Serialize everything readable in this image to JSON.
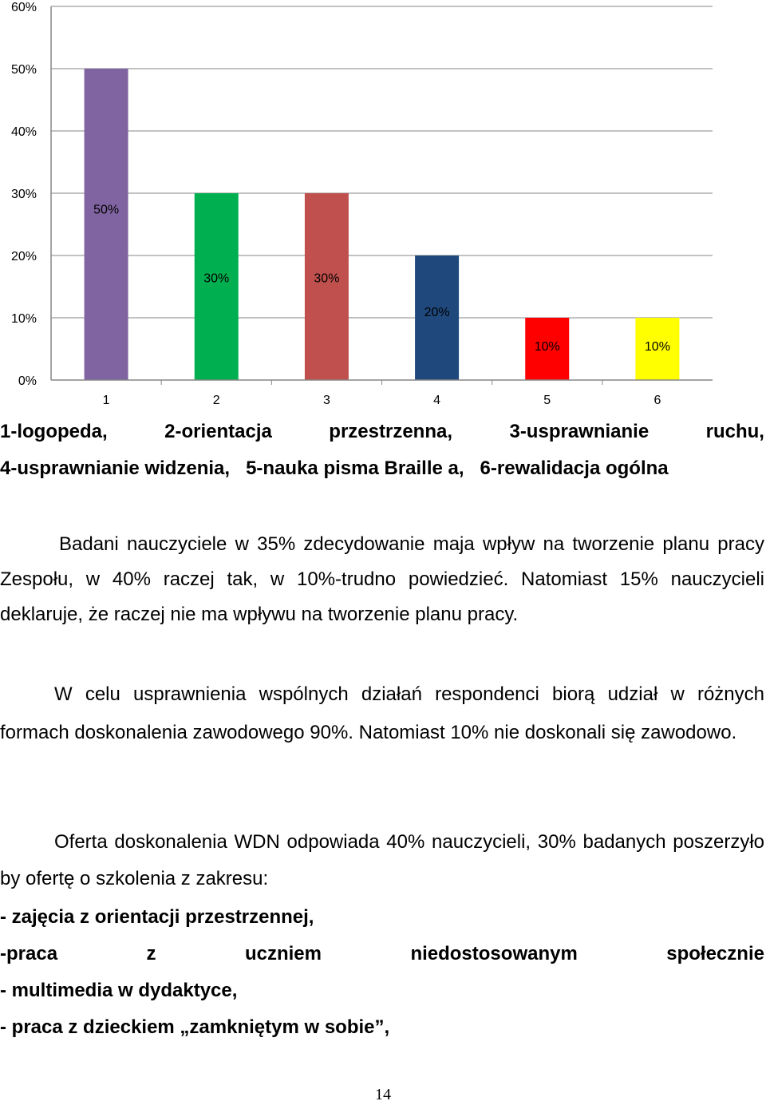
{
  "chart_data": {
    "type": "bar",
    "categories": [
      "1",
      "2",
      "3",
      "4",
      "5",
      "6"
    ],
    "values": [
      50,
      30,
      30,
      20,
      10,
      10
    ],
    "data_labels": [
      "50%",
      "30%",
      "30%",
      "20%",
      "10%",
      "10%"
    ],
    "colors": [
      "#8064a2",
      "#00b050",
      "#c0504d",
      "#1f497d",
      "#ff0000",
      "#ffff00"
    ],
    "yticks": [
      "0%",
      "10%",
      "20%",
      "30%",
      "40%",
      "50%",
      "60%"
    ],
    "ylim": [
      0,
      60
    ],
    "grid": true,
    "title": "",
    "xlabel": "",
    "ylabel": ""
  },
  "legend": {
    "line1": [
      "1-logopeda,",
      "2-orientacja",
      "przestrzenna,",
      "3-usprawnianie",
      "ruchu,"
    ],
    "line2": [
      "4-usprawnianie widzenia,",
      "5-nauka pisma Braille a,",
      "6-rewalidacja ogólna"
    ]
  },
  "paragraphs": {
    "p1": "Badani nauczyciele w 35% zdecydowanie maja wpływ na tworzenie planu pracy Zespołu, w 40% raczej tak, w 10%-trudno powiedzieć. Natomiast 15% nauczycieli deklaruje, że raczej nie ma wpływu na tworzenie planu pracy.",
    "p2": "W celu usprawnienia wspólnych działań respondenci biorą udział w różnych formach doskonalenia zawodowego  90%. Natomiast 10% nie doskonali się zawodowo.",
    "p3": "Oferta doskonalenia WDN odpowiada 40% nauczycieli, 30% badanych poszerzyło by ofertę o szkolenia z zakresu:"
  },
  "bullets": {
    "b1": "- zajęcia z orientacji przestrzennej,",
    "b2_words": [
      "-praca",
      "z",
      "uczniem",
      "niedostosowanym",
      "społecznie"
    ],
    "b3": "- multimedia w dydaktyce,",
    "b4": "- praca z dzieckiem „zamkniętym w sobie”,"
  },
  "page_number": "14"
}
